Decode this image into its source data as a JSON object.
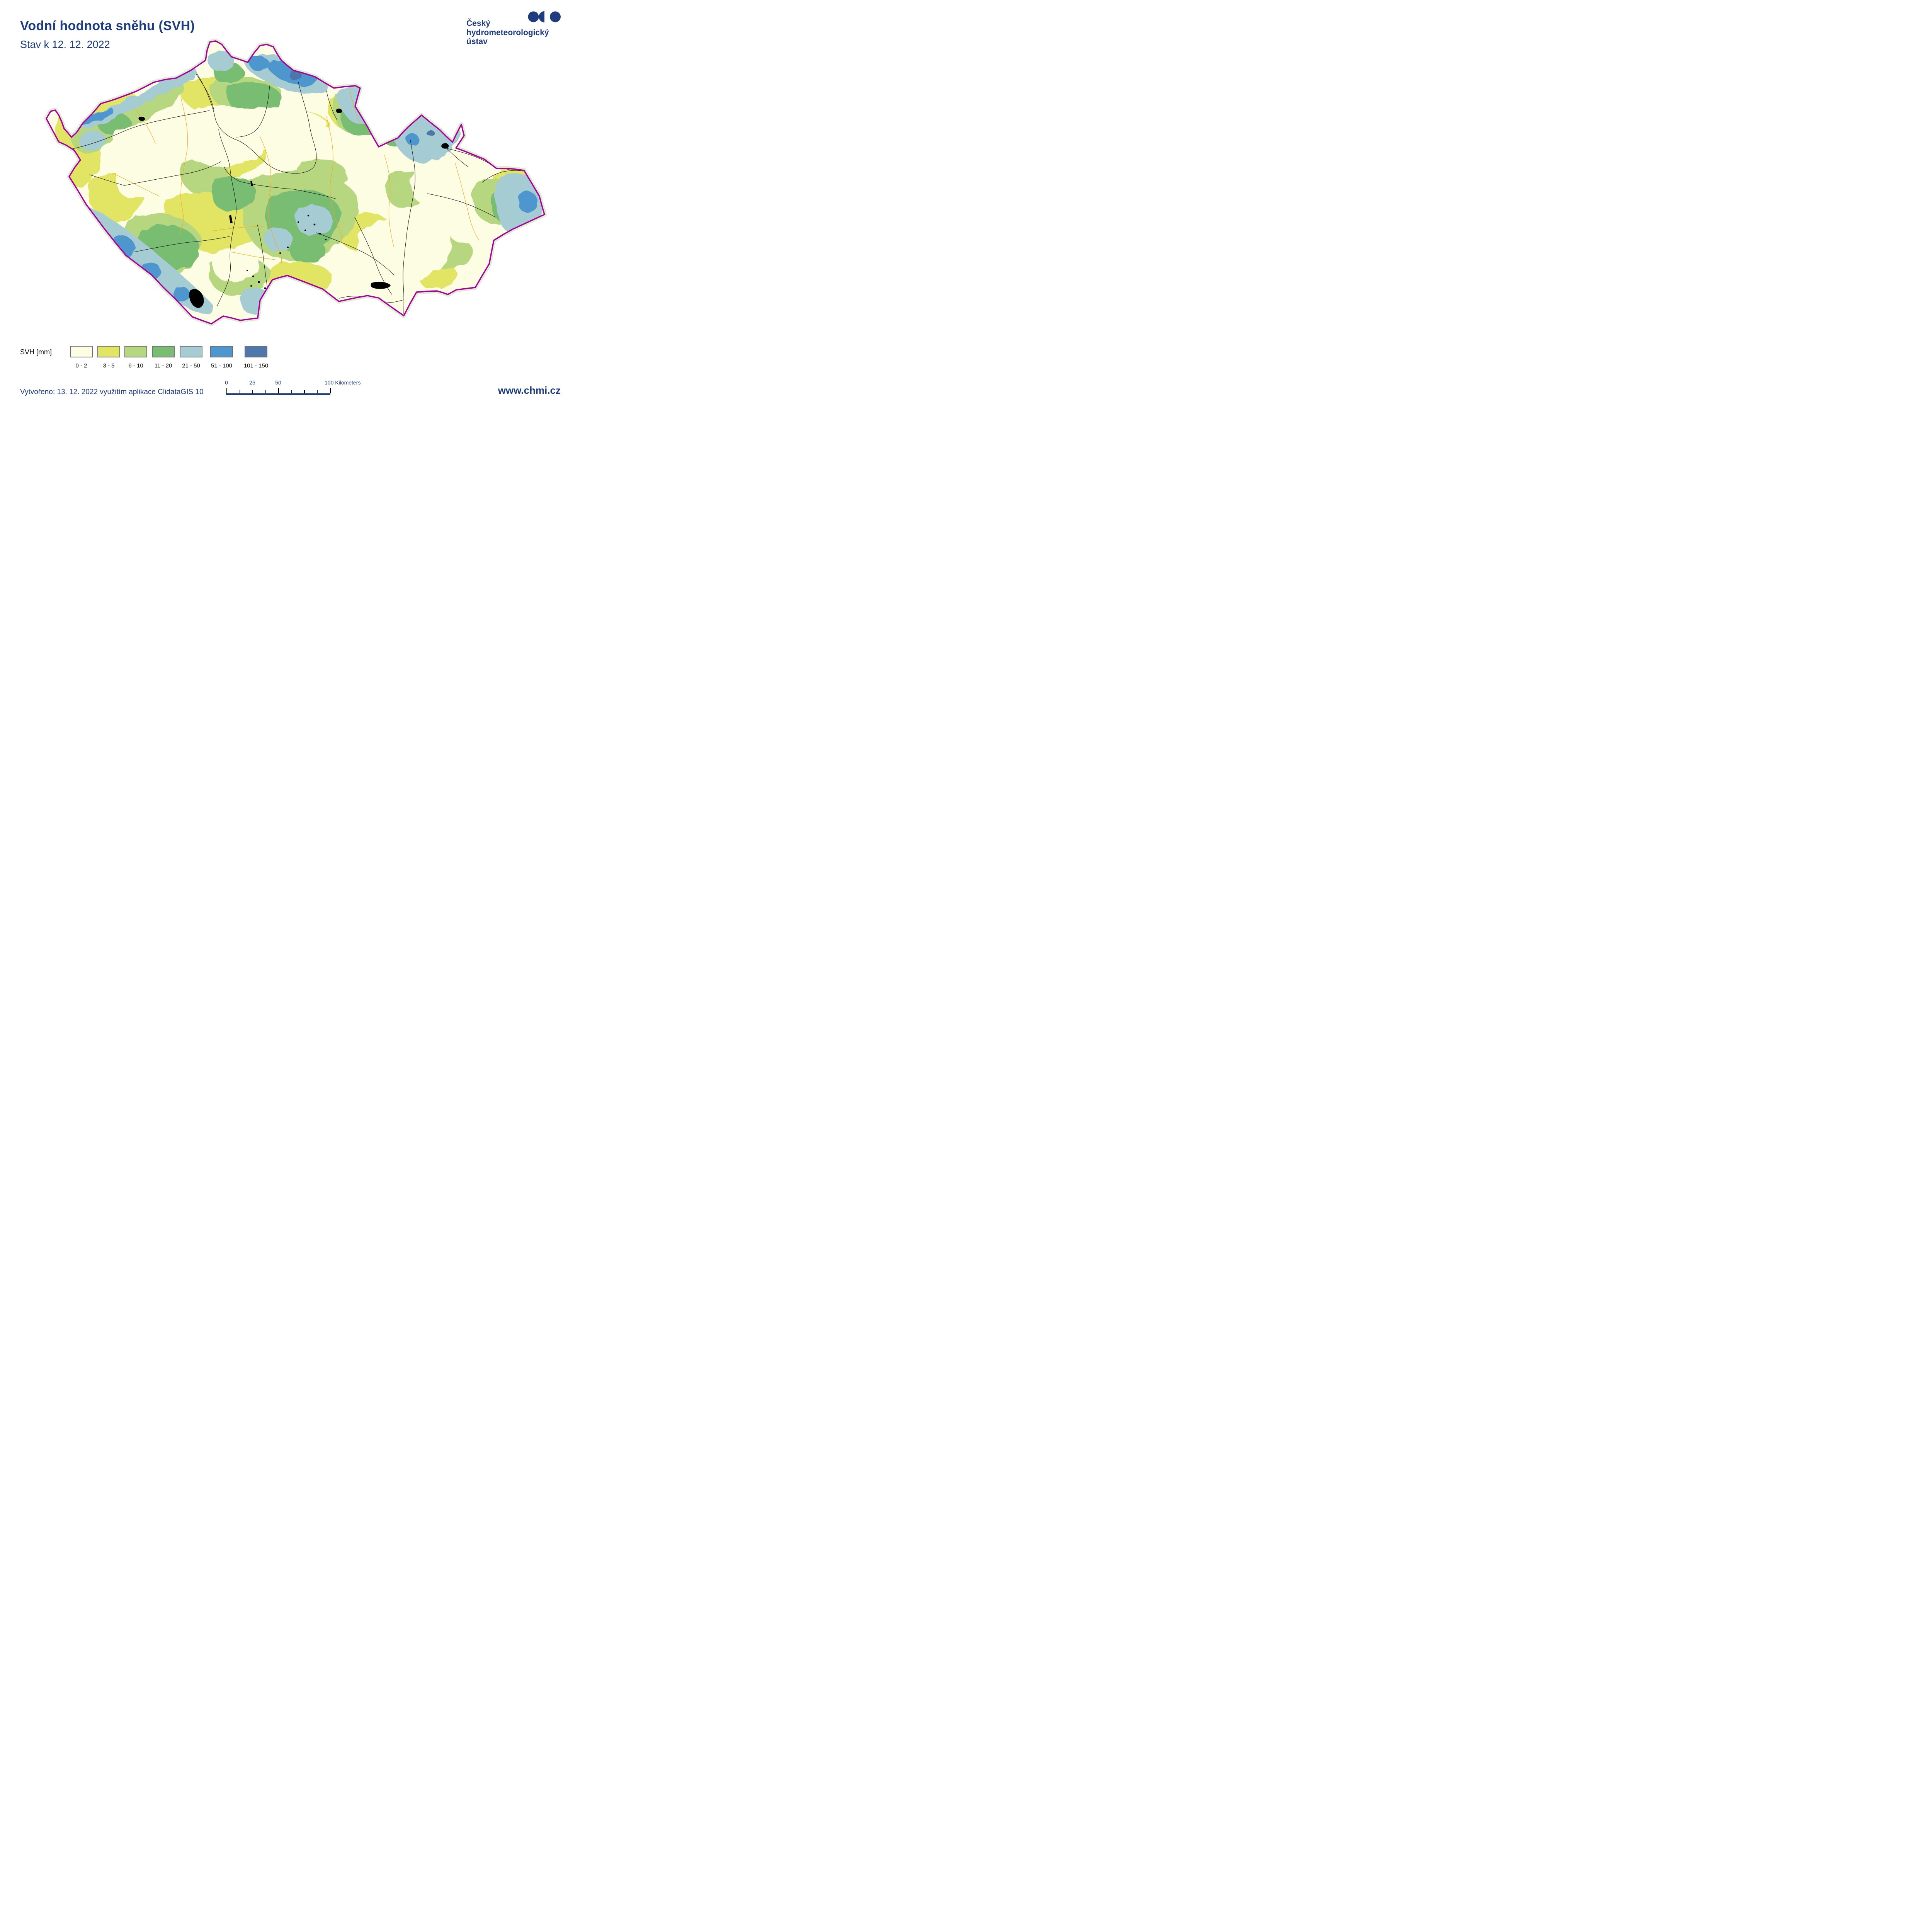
{
  "colors": {
    "navy": "#1e3c7e"
  },
  "header": {
    "title": "Vodní hodnota sněhu (SVH)",
    "subtitle": "Stav k 12. 12. 2022"
  },
  "logo": {
    "org_lines": [
      "Český",
      "hydrometeorologický",
      "ústav"
    ]
  },
  "legend": {
    "title": "SVH [mm]",
    "swatch_border_color": "#6f6f6f",
    "classes": [
      {
        "label": "0 - 2",
        "color": "#fdfde3"
      },
      {
        "label": "3 - 5",
        "color": "#e2e464"
      },
      {
        "label": "6 - 10",
        "color": "#b6d77f"
      },
      {
        "label": "11 - 20",
        "color": "#79bd72"
      },
      {
        "label": "21 - 50",
        "color": "#a5cbd3"
      },
      {
        "label": "51 - 100",
        "color": "#4e97ce"
      },
      {
        "label": "101 - 150",
        "color": "#4e77ab"
      }
    ]
  },
  "scalebar": {
    "tick_labels": [
      "0",
      "25",
      "50"
    ],
    "end_label": "100 Kilometers"
  },
  "map": {
    "border_color": "#a8019b",
    "halo_color": "#d9e8cf",
    "river_color": "#141414",
    "district_line_color": "#f7a41d",
    "water_color": "#000000"
  },
  "footer": {
    "created": "Vytvořeno: 13. 12. 2022 využitím aplikace ClidataGIS 10",
    "website": "www.chmi.cz"
  }
}
